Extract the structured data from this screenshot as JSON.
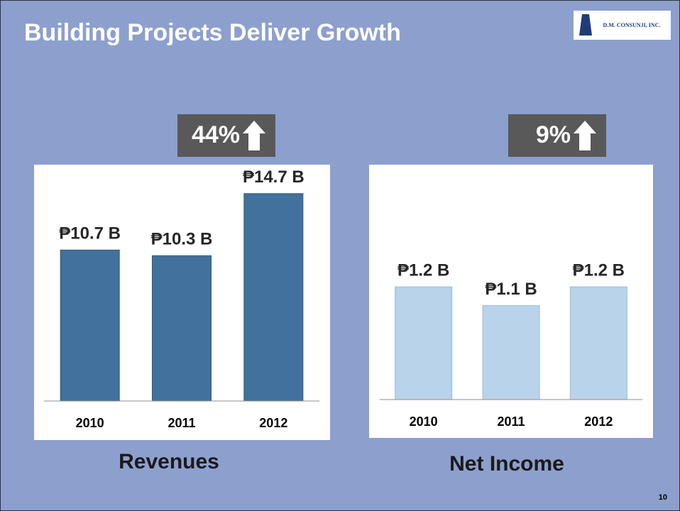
{
  "title": "Building Projects Deliver Growth",
  "logo": "D.M. CONSUNJI, INC.",
  "page_number": "10",
  "chart_data": [
    {
      "type": "bar",
      "title": "Revenues",
      "annotation": "44%",
      "categories": [
        "2010",
        "2011",
        "2012"
      ],
      "values": [
        10.7,
        10.3,
        14.7
      ],
      "value_labels": [
        "₱10.7 B",
        "₱10.3 B",
        "₱14.7 B"
      ],
      "color": "#41719c",
      "ylim": [
        0,
        16.7
      ]
    },
    {
      "type": "bar",
      "title": "Net Income",
      "annotation": "9%",
      "categories": [
        "2010",
        "2011",
        "2012"
      ],
      "values": [
        1.2,
        1.1,
        1.2
      ],
      "value_labels": [
        "₱1.2 B",
        "₱1.1 B",
        "₱1.2 B"
      ],
      "color": "#b9d3ea",
      "ylim": [
        0.6,
        1.85
      ]
    }
  ]
}
